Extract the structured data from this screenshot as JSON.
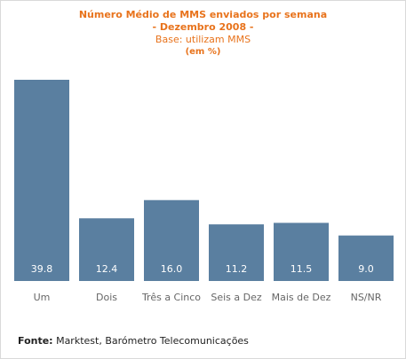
{
  "header": {
    "title": "Número Médio de MMS enviados por semana",
    "subtitle": "- Dezembro 2008 -",
    "base": "Base: utilizam MMS",
    "unit": "(em %)"
  },
  "chart_data": {
    "type": "bar",
    "title": "Número Médio de MMS enviados por semana",
    "subtitle": "- Dezembro 2008 -",
    "categories": [
      "Um",
      "Dois",
      "Três a Cinco",
      "Seis a Dez",
      "Mais de Dez",
      "NS/NR"
    ],
    "values": [
      39.8,
      12.4,
      16.0,
      11.2,
      11.5,
      9.0
    ],
    "value_labels": [
      "39.8",
      "12.4",
      "16.0",
      "11.2",
      "11.5",
      "9.0"
    ],
    "ylim": [
      0,
      40
    ],
    "grid": false,
    "colors": {
      "bar": "#5a7fa0",
      "title": "#e8731c"
    }
  },
  "footer": {
    "source_label": "Fonte:",
    "source_text": " Marktest, Barómetro Telecomunicações"
  }
}
